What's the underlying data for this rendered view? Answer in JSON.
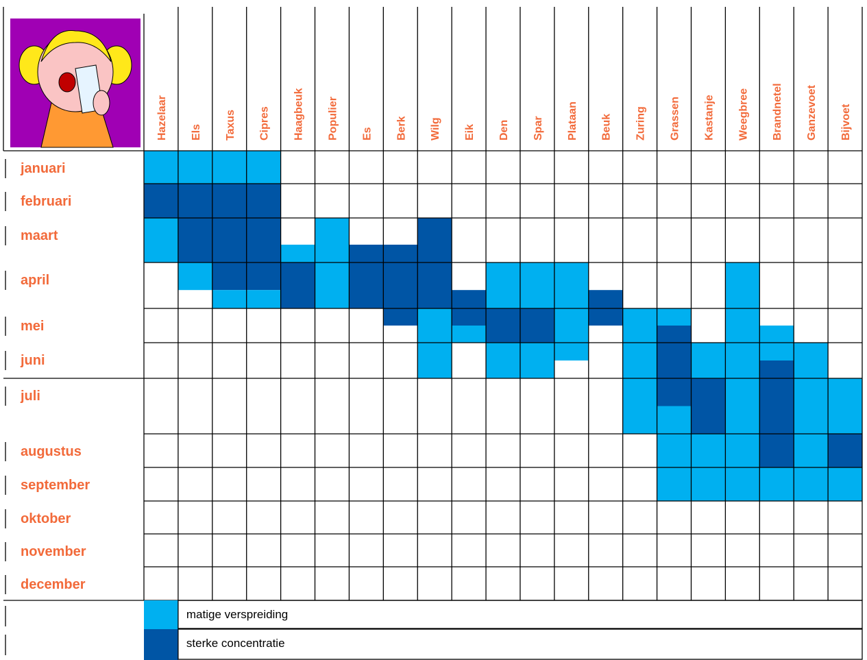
{
  "months": [
    "januari",
    "februari",
    "maart",
    "april",
    "mei",
    "juni",
    "juli",
    "augustus",
    "september",
    "oktober",
    "november",
    "december"
  ],
  "legend": [
    {
      "label": "matige verspreiding",
      "color": "#00b0f0"
    },
    {
      "label": "sterke concentratie",
      "color": "#0055a5"
    }
  ],
  "plants": [
    {
      "name": "Hazelaar",
      "periods": [
        {
          "from": 0,
          "to": 1,
          "level": 0
        },
        {
          "from": 1,
          "to": 2,
          "level": 1
        },
        {
          "from": 2,
          "to": 3,
          "level": 0
        }
      ]
    },
    {
      "name": "Els",
      "periods": [
        {
          "from": 0,
          "to": 1,
          "level": 0
        },
        {
          "from": 1,
          "to": 3,
          "level": 1
        },
        {
          "from": 3,
          "to": 3.6,
          "level": 0
        }
      ]
    },
    {
      "name": "Taxus",
      "periods": [
        {
          "from": 0,
          "to": 1,
          "level": 0
        },
        {
          "from": 1,
          "to": 3.6,
          "level": 1
        },
        {
          "from": 3.6,
          "to": 4,
          "level": 0
        }
      ]
    },
    {
      "name": "Cipres",
      "periods": [
        {
          "from": 0,
          "to": 1,
          "level": 0
        },
        {
          "from": 1,
          "to": 3.6,
          "level": 1
        },
        {
          "from": 3.6,
          "to": 4,
          "level": 0
        }
      ]
    },
    {
      "name": "Haagbeuk",
      "periods": [
        {
          "from": 2.6,
          "to": 3,
          "level": 0
        },
        {
          "from": 3,
          "to": 4,
          "level": 1
        }
      ]
    },
    {
      "name": "Populier",
      "periods": [
        {
          "from": 2,
          "to": 4,
          "level": 0
        }
      ]
    },
    {
      "name": "Es",
      "periods": [
        {
          "from": 2.6,
          "to": 4,
          "level": 1
        }
      ]
    },
    {
      "name": "Berk",
      "periods": [
        {
          "from": 2.6,
          "to": 4.5,
          "level": 1
        }
      ]
    },
    {
      "name": "Wilg",
      "periods": [
        {
          "from": 2,
          "to": 4,
          "level": 1
        },
        {
          "from": 4,
          "to": 6,
          "level": 0
        }
      ]
    },
    {
      "name": "Eik",
      "periods": [
        {
          "from": 3.6,
          "to": 4.5,
          "level": 1
        },
        {
          "from": 4.5,
          "to": 5,
          "level": 0
        }
      ]
    },
    {
      "name": "Den",
      "periods": [
        {
          "from": 3,
          "to": 4,
          "level": 0
        },
        {
          "from": 4,
          "to": 5,
          "level": 1
        },
        {
          "from": 5,
          "to": 6,
          "level": 0
        }
      ]
    },
    {
      "name": "Spar",
      "periods": [
        {
          "from": 3,
          "to": 4,
          "level": 0
        },
        {
          "from": 4,
          "to": 5,
          "level": 1
        },
        {
          "from": 5,
          "to": 6,
          "level": 0
        }
      ]
    },
    {
      "name": "Plataan",
      "periods": [
        {
          "from": 3,
          "to": 5.5,
          "level": 0
        }
      ]
    },
    {
      "name": "Beuk",
      "periods": [
        {
          "from": 3.6,
          "to": 4.5,
          "level": 1
        }
      ]
    },
    {
      "name": "Zuring",
      "periods": [
        {
          "from": 4,
          "to": 7,
          "level": 0
        }
      ]
    },
    {
      "name": "Grassen",
      "periods": [
        {
          "from": 4,
          "to": 4.5,
          "level": 0
        },
        {
          "from": 4.5,
          "to": 6.5,
          "level": 1
        },
        {
          "from": 6.5,
          "to": 9,
          "level": 0
        }
      ]
    },
    {
      "name": "Kastanje",
      "periods": [
        {
          "from": 5,
          "to": 6,
          "level": 0
        },
        {
          "from": 6,
          "to": 7,
          "level": 1
        },
        {
          "from": 7,
          "to": 9,
          "level": 0
        }
      ]
    },
    {
      "name": "Weegbree",
      "periods": [
        {
          "from": 3,
          "to": 9,
          "level": 0
        }
      ]
    },
    {
      "name": "Brandnetel",
      "periods": [
        {
          "from": 4.5,
          "to": 5.5,
          "level": 0
        },
        {
          "from": 5.5,
          "to": 8,
          "level": 1
        },
        {
          "from": 8,
          "to": 9,
          "level": 0
        }
      ]
    },
    {
      "name": "Ganzevoet",
      "periods": [
        {
          "from": 5,
          "to": 9,
          "level": 0
        }
      ]
    },
    {
      "name": "Bijvoet",
      "periods": [
        {
          "from": 6,
          "to": 7,
          "level": 0
        },
        {
          "from": 7,
          "to": 8,
          "level": 1
        },
        {
          "from": 8,
          "to": 9,
          "level": 0
        }
      ]
    }
  ]
}
